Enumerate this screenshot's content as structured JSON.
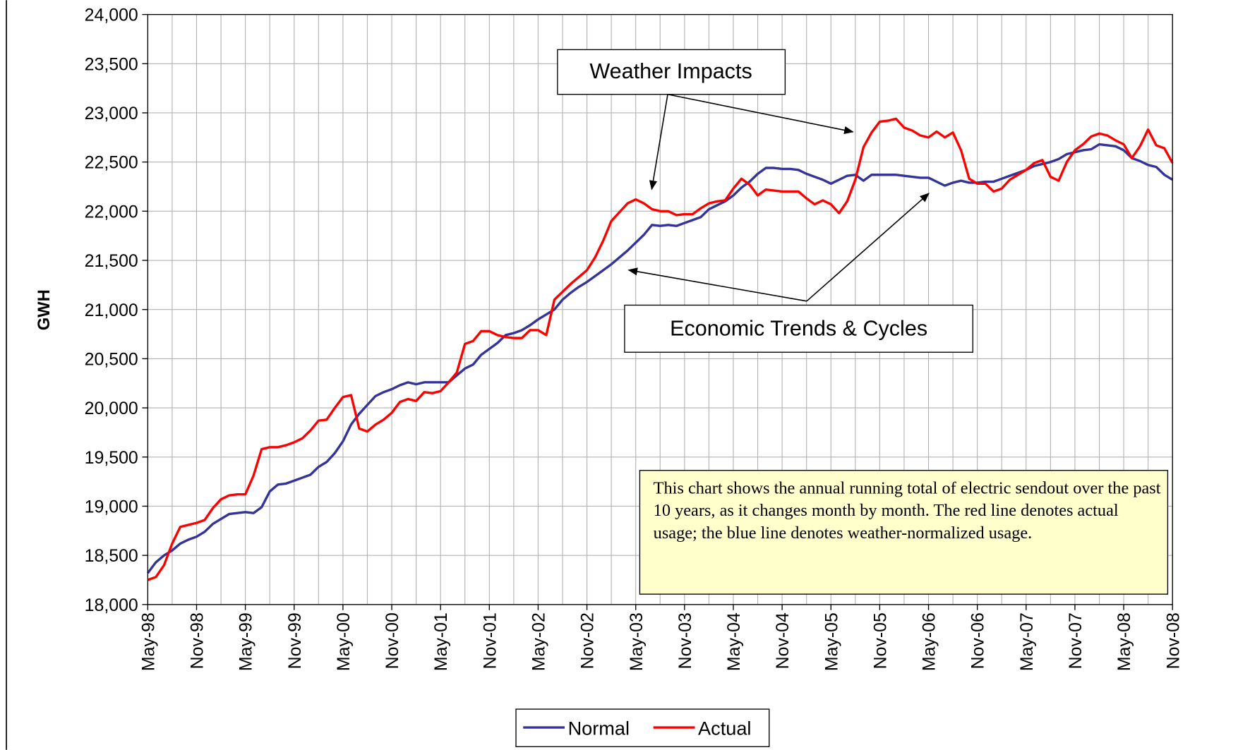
{
  "chart_data": {
    "type": "line",
    "y_label": "GWH",
    "categories": [
      "May-98",
      null,
      null,
      null,
      null,
      null,
      "Nov-98",
      null,
      null,
      null,
      null,
      null,
      "May-99",
      null,
      null,
      null,
      null,
      null,
      "Nov-99",
      null,
      null,
      null,
      null,
      null,
      "May-00",
      null,
      null,
      null,
      null,
      null,
      "Nov-00",
      null,
      null,
      null,
      null,
      null,
      "May-01",
      null,
      null,
      null,
      null,
      null,
      "Nov-01",
      null,
      null,
      null,
      null,
      null,
      "May-02",
      null,
      null,
      null,
      null,
      null,
      "Nov-02",
      null,
      null,
      null,
      null,
      null,
      "May-03",
      null,
      null,
      null,
      null,
      null,
      "Nov-03",
      null,
      null,
      null,
      null,
      null,
      "May-04",
      null,
      null,
      null,
      null,
      null,
      "Nov-04",
      null,
      null,
      null,
      null,
      null,
      "May-05",
      null,
      null,
      null,
      null,
      null,
      "Nov-05",
      null,
      null,
      null,
      null,
      null,
      "May-06",
      null,
      null,
      null,
      null,
      null,
      "Nov-06",
      null,
      null,
      null,
      null,
      null,
      "May-07",
      null,
      null,
      null,
      null,
      null,
      "Nov-07",
      null,
      null,
      null,
      null,
      null,
      "May-08",
      null,
      null,
      null,
      null,
      null,
      "Nov-08"
    ],
    "series": [
      {
        "name": "Normal",
        "color": "#333399",
        "values": [
          18320,
          18430,
          18500,
          18550,
          18620,
          18660,
          18690,
          18740,
          18820,
          18870,
          18920,
          18930,
          18940,
          18930,
          18990,
          19150,
          19220,
          19230,
          19260,
          19290,
          19320,
          19400,
          19450,
          19540,
          19660,
          19830,
          19940,
          20030,
          20120,
          20160,
          20190,
          20230,
          20260,
          20240,
          20260,
          20260,
          20260,
          20260,
          20330,
          20400,
          20440,
          20540,
          20600,
          20660,
          20740,
          20760,
          20790,
          20840,
          20900,
          20950,
          21000,
          21100,
          21170,
          21230,
          21280,
          21340,
          21400,
          21460,
          21530,
          21600,
          21680,
          21760,
          21860,
          21850,
          21860,
          21850,
          21880,
          21910,
          21940,
          22020,
          22060,
          22100,
          22160,
          22240,
          22300,
          22380,
          22440,
          22440,
          22430,
          22430,
          22420,
          22380,
          22350,
          22320,
          22280,
          22320,
          22360,
          22370,
          22310,
          22370,
          22370,
          22370,
          22370,
          22360,
          22350,
          22340,
          22340,
          22300,
          22260,
          22290,
          22310,
          22290,
          22290,
          22300,
          22300,
          22330,
          22360,
          22390,
          22420,
          22460,
          22480,
          22500,
          22530,
          22580,
          22600,
          22620,
          22630,
          22680,
          22670,
          22660,
          22620,
          22540,
          22510,
          22470,
          22450,
          22370,
          22320
        ]
      },
      {
        "name": "Actual",
        "color": "#ff0000",
        "values": [
          18250,
          18280,
          18400,
          18620,
          18790,
          18810,
          18830,
          18860,
          18980,
          19070,
          19110,
          19120,
          19120,
          19310,
          19580,
          19600,
          19600,
          19620,
          19650,
          19690,
          19770,
          19870,
          19880,
          20000,
          20110,
          20130,
          19790,
          19760,
          19830,
          19880,
          19950,
          20060,
          20090,
          20070,
          20160,
          20150,
          20170,
          20260,
          20360,
          20650,
          20680,
          20780,
          20780,
          20740,
          20720,
          20710,
          20710,
          20790,
          20790,
          20740,
          21100,
          21180,
          21260,
          21330,
          21400,
          21530,
          21700,
          21900,
          21990,
          22080,
          22120,
          22080,
          22020,
          22000,
          22000,
          21960,
          21970,
          21970,
          22030,
          22080,
          22100,
          22110,
          22230,
          22330,
          22270,
          22160,
          22220,
          22210,
          22200,
          22200,
          22200,
          22130,
          22070,
          22110,
          22070,
          21980,
          22100,
          22320,
          22650,
          22800,
          22910,
          22920,
          22940,
          22850,
          22820,
          22770,
          22750,
          22810,
          22750,
          22800,
          22620,
          22330,
          22280,
          22280,
          22200,
          22230,
          22320,
          22370,
          22420,
          22490,
          22520,
          22350,
          22310,
          22500,
          22620,
          22680,
          22760,
          22790,
          22770,
          22720,
          22680,
          22540,
          22660,
          22830,
          22670,
          22640,
          22490
        ]
      }
    ],
    "ylim": [
      18000,
      24000
    ],
    "yticks": [
      {
        "value": 18000,
        "label": "18,000"
      },
      {
        "value": 18500,
        "label": "18,500"
      },
      {
        "value": 19000,
        "label": "19,000"
      },
      {
        "value": 19500,
        "label": "19,500"
      },
      {
        "value": 20000,
        "label": "20,000"
      },
      {
        "value": 20500,
        "label": "20,500"
      },
      {
        "value": 21000,
        "label": "21,000"
      },
      {
        "value": 21500,
        "label": "21,500"
      },
      {
        "value": 22000,
        "label": "22,000"
      },
      {
        "value": 22500,
        "label": "22,500"
      },
      {
        "value": 23000,
        "label": "23,000"
      },
      {
        "value": 23500,
        "label": "23,500"
      },
      {
        "value": 24000,
        "label": "24,000"
      }
    ],
    "grid": true,
    "legend": "bottom",
    "annotations": [
      "Weather Impacts",
      "Economic Trends & Cycles"
    ],
    "note": "This chart shows the annual running total of electric sendout over the past 10 years, as it changes month by month. The red line denotes actual usage; the blue line denotes weather-normalized usage."
  }
}
